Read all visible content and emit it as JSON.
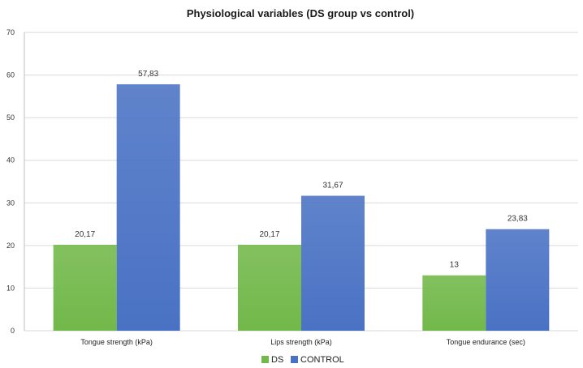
{
  "chart_data": {
    "type": "bar",
    "title": "Physiological variables (DS group vs control)",
    "categories": [
      "Tongue strength (kPa)",
      "Lips strength (kPa)",
      "Tongue endurance (sec)"
    ],
    "series": [
      {
        "name": "DS",
        "values": [
          20.17,
          20.17,
          13
        ],
        "labels": [
          "20,17",
          "20,17",
          "13"
        ],
        "color": "#72b84a"
      },
      {
        "name": "CONTROL",
        "values": [
          57.83,
          31.67,
          23.83
        ],
        "labels": [
          "57,83",
          "31,67",
          "23,83"
        ],
        "color": "#4a72c4"
      }
    ],
    "ylim": [
      0,
      70
    ],
    "yticks": [
      0,
      10,
      20,
      30,
      40,
      50,
      60,
      70
    ],
    "grid": true,
    "legend": "bottom-center"
  }
}
